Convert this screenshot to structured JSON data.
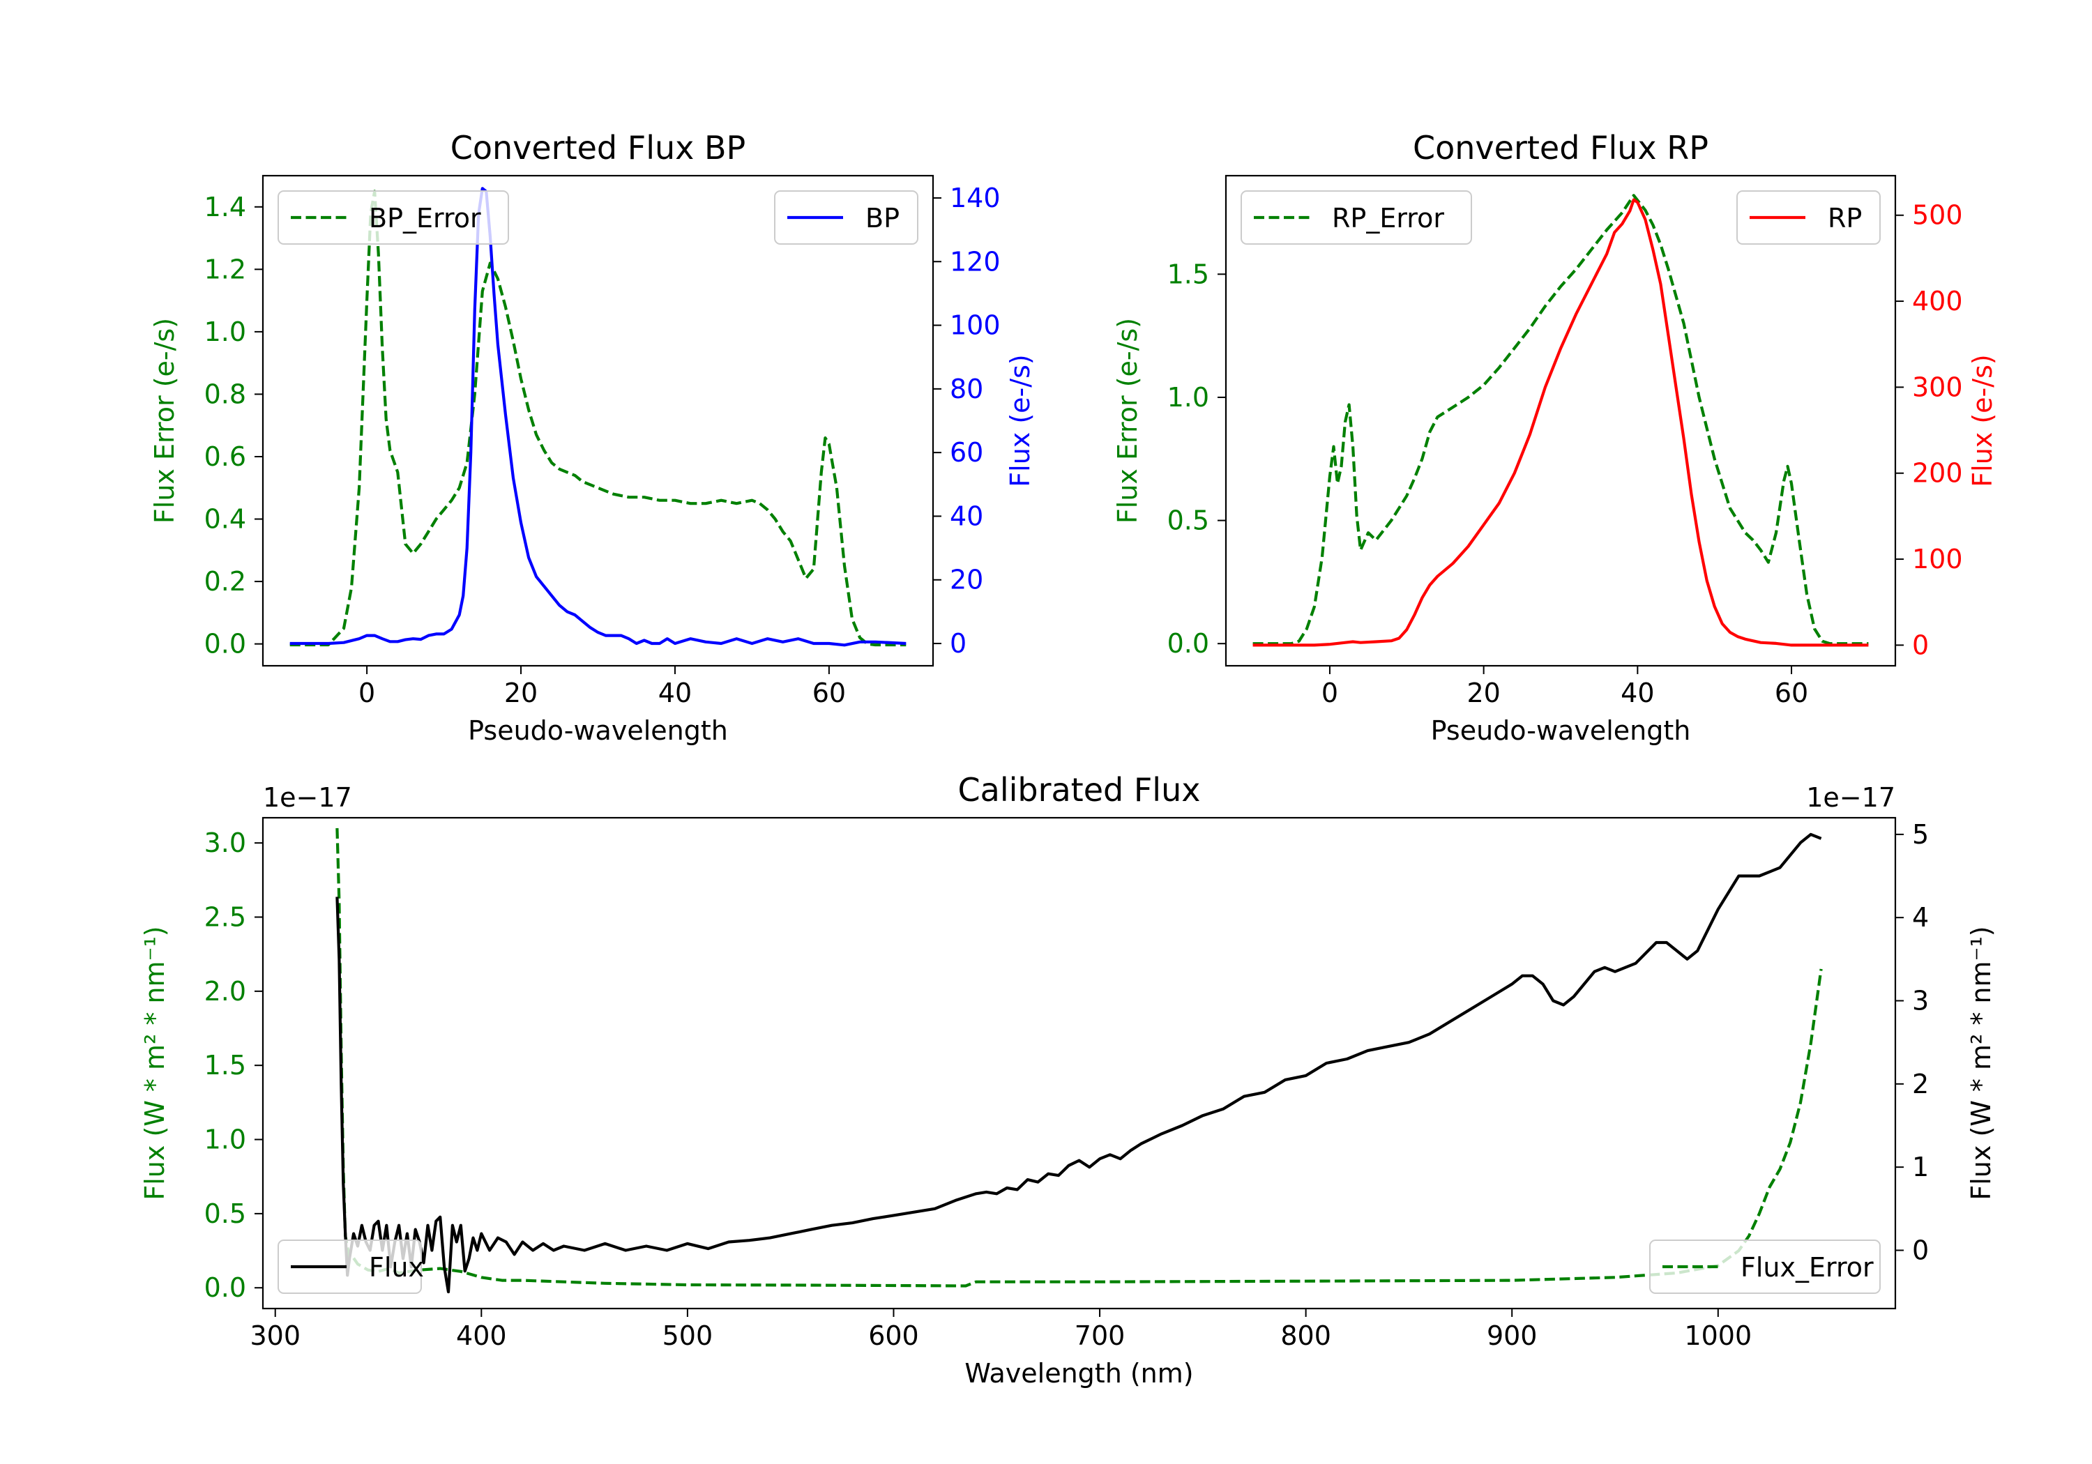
{
  "chart_data": [
    {
      "type": "line",
      "title": "Converted Flux BP",
      "xlabel": "Pseudo-wavelength",
      "ylabel_left": "Flux Error (e-/s)",
      "ylabel_right": "Flux (e-/s)",
      "xlim": [
        -13.5,
        73.5
      ],
      "ylim_left": [
        -0.07,
        1.5
      ],
      "ylim_right": [
        -7,
        147
      ],
      "xticks": [
        0,
        20,
        40,
        60
      ],
      "yticks_left": [
        0.0,
        0.2,
        0.4,
        0.6,
        0.8,
        1.0,
        1.2,
        1.4
      ],
      "yticks_right": [
        0,
        20,
        40,
        60,
        80,
        100,
        120,
        140
      ],
      "ytick_labels_left": [
        "0.0",
        "0.2",
        "0.4",
        "0.6",
        "0.8",
        "1.0",
        "1.2",
        "1.4"
      ],
      "ytick_labels_right": [
        "0",
        "20",
        "40",
        "60",
        "80",
        "100",
        "120",
        "140"
      ],
      "legend_left": {
        "label": "BP_Error",
        "position": "upper left"
      },
      "legend_right": {
        "label": "BP",
        "position": "upper right"
      },
      "series": [
        {
          "name": "BP_Error",
          "axis": "left",
          "style": "dashed",
          "color": "#008000",
          "x": [
            -10,
            -5,
            -3,
            -2,
            -1,
            0,
            0.5,
            1,
            1.5,
            2,
            2.5,
            3,
            4,
            5,
            6,
            7,
            8,
            9,
            10,
            11,
            12,
            13,
            14,
            15,
            16,
            17,
            18,
            19,
            20,
            21,
            22,
            23,
            24,
            25,
            26,
            27,
            28,
            30,
            32,
            34,
            36,
            38,
            40,
            42,
            44,
            46,
            48,
            50,
            51,
            52,
            53,
            54,
            55,
            56,
            57,
            58,
            59,
            59.5,
            60,
            61,
            62,
            63,
            64,
            65,
            66,
            70
          ],
          "y": [
            -0.003,
            -0.003,
            0.05,
            0.18,
            0.5,
            1.1,
            1.38,
            1.45,
            1.25,
            0.95,
            0.72,
            0.62,
            0.55,
            0.32,
            0.29,
            0.32,
            0.36,
            0.4,
            0.43,
            0.46,
            0.5,
            0.58,
            0.8,
            1.13,
            1.22,
            1.17,
            1.08,
            0.97,
            0.85,
            0.75,
            0.67,
            0.62,
            0.58,
            0.56,
            0.55,
            0.54,
            0.52,
            0.5,
            0.48,
            0.47,
            0.47,
            0.46,
            0.46,
            0.45,
            0.45,
            0.46,
            0.45,
            0.46,
            0.45,
            0.43,
            0.4,
            0.36,
            0.33,
            0.27,
            0.21,
            0.24,
            0.55,
            0.66,
            0.64,
            0.5,
            0.25,
            0.08,
            0.02,
            0.0,
            -0.003,
            -0.003
          ]
        },
        {
          "name": "BP",
          "axis": "right",
          "style": "solid",
          "color": "#0000ff",
          "x": [
            -10,
            -5,
            -3,
            -1,
            0,
            1,
            2,
            3,
            4,
            5,
            6,
            7,
            8,
            9,
            10,
            11,
            12,
            12.5,
            13,
            13.5,
            14,
            14.5,
            15,
            15.5,
            16,
            16.5,
            17,
            18,
            19,
            20,
            21,
            22,
            23,
            24,
            25,
            26,
            27,
            28,
            29,
            30,
            31,
            32,
            33,
            34,
            35,
            36,
            37,
            38,
            39,
            40,
            42,
            44,
            46,
            48,
            50,
            52,
            54,
            56,
            58,
            60,
            62,
            64,
            66,
            70
          ],
          "y": [
            0,
            0,
            0.3,
            1.5,
            2.5,
            2.5,
            1.5,
            0.6,
            0.6,
            1.2,
            1.5,
            1.3,
            2.5,
            3.0,
            3.0,
            4.5,
            9,
            15,
            30,
            60,
            105,
            135,
            143,
            142,
            128,
            110,
            94,
            72,
            52,
            38,
            27,
            21,
            18,
            15,
            12,
            10,
            9,
            7,
            5,
            3.5,
            2.5,
            2.5,
            2.5,
            1.5,
            0,
            1,
            0,
            0,
            1.5,
            0,
            1.5,
            0.5,
            0,
            1.5,
            0,
            1.5,
            0.5,
            1.5,
            0,
            0,
            -0.5,
            0.5,
            0.5,
            0
          ]
        }
      ]
    },
    {
      "type": "line",
      "title": "Converted Flux RP",
      "xlabel": "Pseudo-wavelength",
      "ylabel_left": "Flux Error (e-/s)",
      "ylabel_right": "Flux (e-/s)",
      "xlim": [
        -13.5,
        73.5
      ],
      "ylim_left": [
        -0.09,
        1.9
      ],
      "ylim_right": [
        -24,
        546
      ],
      "xticks": [
        0,
        20,
        40,
        60
      ],
      "yticks_left": [
        0.0,
        0.5,
        1.0,
        1.5
      ],
      "yticks_right": [
        0,
        100,
        200,
        300,
        400,
        500
      ],
      "ytick_labels_left": [
        "0.0",
        "0.5",
        "1.0",
        "1.5"
      ],
      "ytick_labels_right": [
        "0",
        "100",
        "200",
        "300",
        "400",
        "500"
      ],
      "legend_left": {
        "label": "RP_Error",
        "position": "upper left"
      },
      "legend_right": {
        "label": "RP",
        "position": "upper right"
      },
      "series": [
        {
          "name": "RP_Error",
          "axis": "left",
          "style": "dashed",
          "color": "#008000",
          "x": [
            -10,
            -5,
            -4,
            -3,
            -2,
            -1,
            0,
            0.5,
            1,
            1.5,
            2,
            2.5,
            3,
            3.5,
            4,
            5,
            6,
            7,
            8,
            9,
            10,
            11,
            12,
            13,
            14,
            16,
            18,
            20,
            22,
            24,
            26,
            28,
            30,
            32,
            34,
            36,
            38,
            39.5,
            41,
            42,
            43,
            44,
            46,
            48,
            50,
            52,
            54,
            55,
            56,
            57,
            58,
            59,
            59.5,
            60,
            61,
            62,
            63,
            64,
            65,
            70
          ],
          "y": [
            0,
            0,
            0.01,
            0.06,
            0.15,
            0.35,
            0.68,
            0.8,
            0.65,
            0.72,
            0.9,
            0.97,
            0.8,
            0.52,
            0.38,
            0.45,
            0.42,
            0.46,
            0.5,
            0.55,
            0.6,
            0.67,
            0.75,
            0.86,
            0.92,
            0.96,
            1.0,
            1.05,
            1.12,
            1.2,
            1.28,
            1.37,
            1.45,
            1.52,
            1.6,
            1.68,
            1.75,
            1.82,
            1.76,
            1.7,
            1.62,
            1.52,
            1.3,
            1.0,
            0.75,
            0.55,
            0.45,
            0.42,
            0.38,
            0.33,
            0.45,
            0.66,
            0.72,
            0.65,
            0.42,
            0.2,
            0.06,
            0.01,
            0,
            0
          ]
        },
        {
          "name": "RP",
          "axis": "right",
          "style": "solid",
          "color": "#ff0000",
          "x": [
            -10,
            -2,
            0,
            2,
            3,
            4,
            6,
            8,
            9,
            10,
            11,
            12,
            13,
            14,
            16,
            18,
            20,
            22,
            24,
            26,
            28,
            30,
            32,
            34,
            36,
            37,
            38,
            39,
            39.5,
            40,
            41,
            42,
            43,
            44,
            45,
            46,
            47,
            48,
            49,
            50,
            51,
            52,
            53,
            54,
            56,
            58,
            60,
            62,
            64,
            70
          ],
          "y": [
            0,
            0,
            1,
            3,
            4,
            3,
            4,
            5,
            8,
            18,
            35,
            55,
            70,
            80,
            95,
            115,
            140,
            165,
            200,
            245,
            300,
            345,
            385,
            420,
            455,
            480,
            490,
            505,
            518,
            515,
            495,
            460,
            420,
            360,
            300,
            240,
            175,
            120,
            75,
            45,
            25,
            15,
            10,
            7,
            3,
            2,
            0,
            0,
            0,
            0
          ]
        }
      ]
    },
    {
      "type": "line",
      "title": "Calibrated Flux",
      "xlabel": "Wavelength (nm)",
      "ylabel_left": "Flux (W * m² * nm⁻¹)",
      "ylabel_right": "Flux (W * m² * nm⁻¹)",
      "offset_left": "1e−17",
      "offset_right": "1e−17",
      "xlim": [
        294,
        1086
      ],
      "ylim_left": [
        -0.14,
        3.17
      ],
      "ylim_right": [
        -0.7,
        5.2
      ],
      "xticks": [
        300,
        400,
        500,
        600,
        700,
        800,
        900,
        1000
      ],
      "yticks_left": [
        0.0,
        0.5,
        1.0,
        1.5,
        2.0,
        2.5,
        3.0
      ],
      "yticks_right": [
        0,
        1,
        2,
        3,
        4,
        5
      ],
      "ytick_labels_left": [
        "0.0",
        "0.5",
        "1.0",
        "1.5",
        "2.0",
        "2.5",
        "3.0"
      ],
      "ytick_labels_right": [
        "0",
        "1",
        "2",
        "3",
        "4",
        "5"
      ],
      "legend_left": {
        "label": "Flux",
        "position": "lower left"
      },
      "legend_right": {
        "label": "Flux_Error",
        "position": "lower right"
      },
      "series": [
        {
          "name": "Flux_Error",
          "axis": "left",
          "style": "dashed",
          "color": "#008000",
          "x": [
            330,
            331,
            332,
            333,
            334,
            336,
            338,
            340,
            345,
            350,
            355,
            360,
            370,
            380,
            390,
            400,
            410,
            420,
            440,
            460,
            480,
            500,
            550,
            600,
            635,
            640,
            700,
            800,
            900,
            950,
            980,
            1000,
            1010,
            1015,
            1020,
            1025,
            1030,
            1035,
            1040,
            1045,
            1050
          ],
          "y": [
            3.1,
            2.6,
            1.6,
            0.8,
            0.35,
            0.2,
            0.2,
            0.16,
            0.12,
            0.11,
            0.13,
            0.1,
            0.12,
            0.13,
            0.11,
            0.07,
            0.05,
            0.05,
            0.04,
            0.03,
            0.025,
            0.02,
            0.018,
            0.015,
            0.013,
            0.04,
            0.04,
            0.045,
            0.05,
            0.07,
            0.1,
            0.15,
            0.25,
            0.35,
            0.5,
            0.68,
            0.8,
            0.98,
            1.25,
            1.65,
            2.15
          ]
        },
        {
          "name": "Flux",
          "axis": "right",
          "style": "solid",
          "color": "#000000",
          "x": [
            330,
            331,
            332,
            333,
            334,
            335,
            336,
            338,
            340,
            342,
            344,
            346,
            348,
            350,
            352,
            354,
            356,
            358,
            360,
            362,
            364,
            366,
            368,
            370,
            372,
            374,
            376,
            378,
            380,
            382,
            384,
            386,
            388,
            390,
            392,
            394,
            396,
            398,
            400,
            404,
            408,
            412,
            416,
            420,
            425,
            430,
            435,
            440,
            450,
            460,
            470,
            480,
            490,
            500,
            510,
            520,
            530,
            540,
            550,
            560,
            570,
            580,
            590,
            600,
            620,
            630,
            640,
            645,
            650,
            655,
            660,
            665,
            670,
            675,
            680,
            685,
            690,
            695,
            700,
            705,
            710,
            715,
            720,
            730,
            740,
            750,
            760,
            770,
            780,
            790,
            800,
            810,
            820,
            830,
            840,
            850,
            860,
            870,
            880,
            890,
            900,
            905,
            910,
            915,
            920,
            925,
            930,
            940,
            945,
            950,
            960,
            970,
            975,
            980,
            985,
            990,
            1000,
            1010,
            1020,
            1030,
            1040,
            1045,
            1050
          ],
          "y": [
            4.25,
            3.5,
            2.0,
            0.8,
            0.2,
            -0.3,
            -0.1,
            0.2,
            0.05,
            0.3,
            0.1,
            0.0,
            0.3,
            0.35,
            0.0,
            0.3,
            -0.2,
            0.1,
            0.3,
            -0.1,
            0.2,
            -0.2,
            0.25,
            0.1,
            -0.15,
            0.3,
            0.0,
            0.35,
            0.4,
            -0.2,
            -0.5,
            0.3,
            0.1,
            0.3,
            -0.25,
            -0.1,
            0.15,
            0.0,
            0.2,
            0.0,
            0.15,
            0.1,
            -0.05,
            0.1,
            0.0,
            0.08,
            0.0,
            0.05,
            0.0,
            0.08,
            0.0,
            0.05,
            0.0,
            0.08,
            0.02,
            0.1,
            0.12,
            0.15,
            0.2,
            0.25,
            0.3,
            0.33,
            0.38,
            0.42,
            0.5,
            0.6,
            0.68,
            0.7,
            0.68,
            0.75,
            0.73,
            0.85,
            0.82,
            0.92,
            0.9,
            1.02,
            1.08,
            1.0,
            1.1,
            1.15,
            1.1,
            1.2,
            1.28,
            1.4,
            1.5,
            1.62,
            1.7,
            1.85,
            1.9,
            2.05,
            2.1,
            2.25,
            2.3,
            2.4,
            2.45,
            2.5,
            2.6,
            2.75,
            2.9,
            3.05,
            3.2,
            3.3,
            3.3,
            3.2,
            3.0,
            2.95,
            3.05,
            3.35,
            3.4,
            3.35,
            3.45,
            3.7,
            3.7,
            3.6,
            3.5,
            3.6,
            4.1,
            4.5,
            4.5,
            4.6,
            4.9,
            5.0,
            4.95
          ]
        }
      ]
    }
  ]
}
